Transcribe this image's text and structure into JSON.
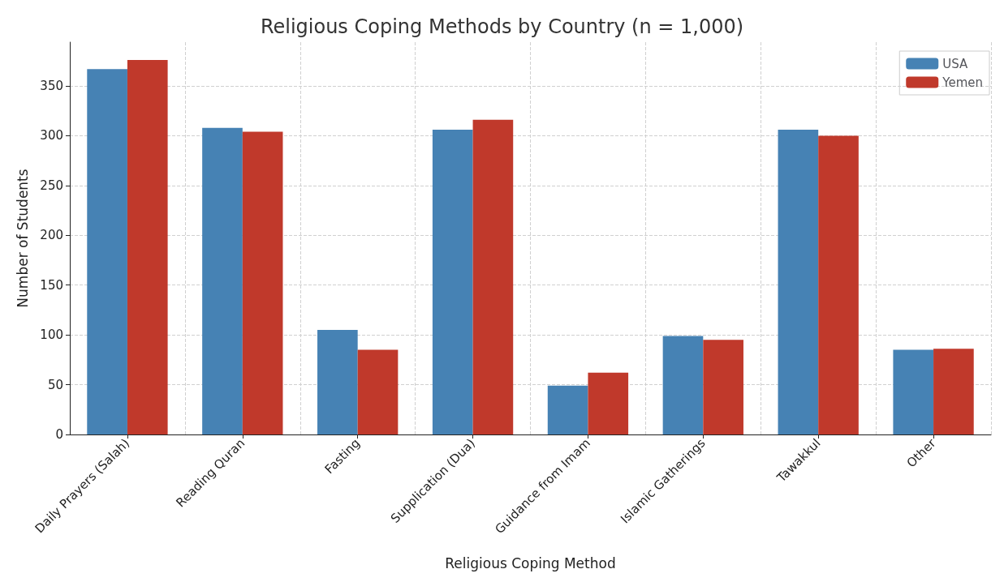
{
  "chart_data": {
    "type": "bar",
    "title": "Religious Coping Methods by Country (n = 1,000)",
    "xlabel": "Religious Coping Method",
    "ylabel": "Number of Students",
    "categories": [
      "Daily Prayers (Salah)",
      "Reading Quran",
      "Fasting",
      "Supplication (Dua)",
      "Guidance from Imam",
      "Islamic Gatherings",
      "Tawakkul",
      "Other"
    ],
    "series": [
      {
        "name": "USA",
        "color": "#4682b4",
        "values": [
          367,
          308,
          105,
          306,
          49,
          99,
          306,
          85
        ]
      },
      {
        "name": "Yemen",
        "color": "#c0392b",
        "values": [
          376,
          304,
          85,
          316,
          62,
          95,
          300,
          86
        ]
      }
    ],
    "ylim": [
      0,
      394
    ],
    "yticks": [
      0,
      50,
      100,
      150,
      200,
      250,
      300,
      350
    ],
    "grid": true,
    "legend": "top right"
  }
}
